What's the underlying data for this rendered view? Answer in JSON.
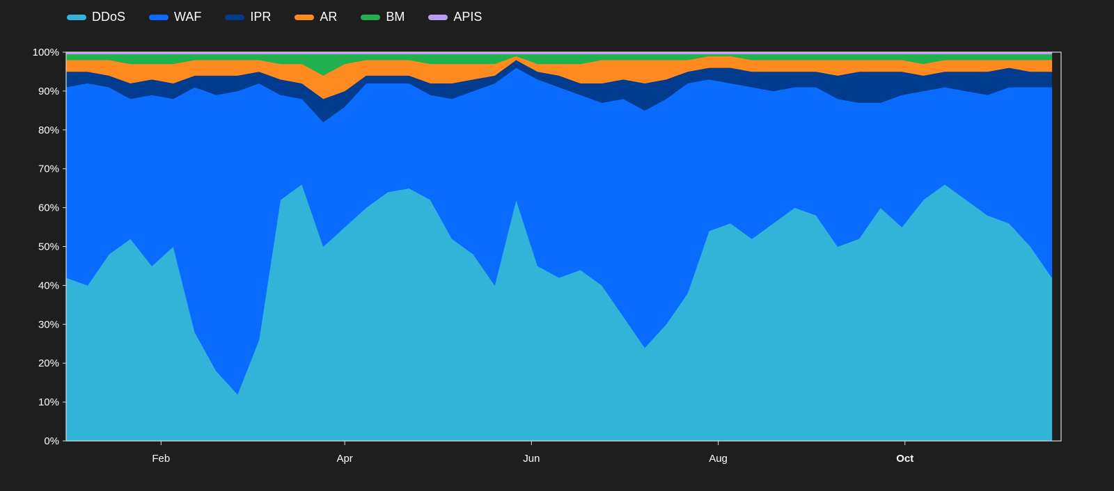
{
  "chart_data": {
    "type": "area",
    "stacked": true,
    "normalized": true,
    "y_axis": {
      "ticks": [
        "0%",
        "10%",
        "20%",
        "30%",
        "40%",
        "50%",
        "60%",
        "70%",
        "80%",
        "90%",
        "100%"
      ],
      "ylim": [
        0,
        100
      ]
    },
    "x_axis": {
      "ticks": [
        {
          "label": "Feb",
          "date": "2024-02-01",
          "bold": false
        },
        {
          "label": "Apr",
          "date": "2024-04-01",
          "bold": false
        },
        {
          "label": "Jun",
          "date": "2024-06-01",
          "bold": false
        },
        {
          "label": "Aug",
          "date": "2024-08-01",
          "bold": false
        },
        {
          "label": "Oct",
          "date": "2024-10-01",
          "bold": true
        }
      ],
      "xlim": [
        "2024-01-01",
        "2024-11-21"
      ]
    },
    "legend_placement": "top-left",
    "x": [
      "2024-01-01",
      "2024-01-08",
      "2024-01-15",
      "2024-01-22",
      "2024-01-29",
      "2024-02-05",
      "2024-02-12",
      "2024-02-19",
      "2024-02-26",
      "2024-03-04",
      "2024-03-11",
      "2024-03-18",
      "2024-03-25",
      "2024-04-01",
      "2024-04-08",
      "2024-04-15",
      "2024-04-22",
      "2024-04-29",
      "2024-05-06",
      "2024-05-13",
      "2024-05-20",
      "2024-05-27",
      "2024-06-03",
      "2024-06-10",
      "2024-06-17",
      "2024-06-24",
      "2024-07-01",
      "2024-07-08",
      "2024-07-15",
      "2024-07-22",
      "2024-07-29",
      "2024-08-05",
      "2024-08-12",
      "2024-08-19",
      "2024-08-26",
      "2024-09-02",
      "2024-09-09",
      "2024-09-16",
      "2024-09-23",
      "2024-09-30",
      "2024-10-07",
      "2024-10-14",
      "2024-10-21",
      "2024-10-28",
      "2024-11-04",
      "2024-11-11",
      "2024-11-18"
    ],
    "series": [
      {
        "name": "DDoS",
        "color": "#32b4d8",
        "values": [
          42,
          40,
          48,
          52,
          45,
          50,
          28,
          18,
          12,
          26,
          62,
          66,
          50,
          55,
          60,
          64,
          65,
          62,
          52,
          48,
          40,
          62,
          45,
          42,
          44,
          40,
          32,
          24,
          30,
          38,
          54,
          56,
          52,
          56,
          60,
          58,
          50,
          52,
          60,
          55,
          62,
          66,
          62,
          58,
          56,
          50,
          42
        ]
      },
      {
        "name": "WAF",
        "color": "#0a6cff",
        "values": [
          49,
          52,
          43,
          36,
          44,
          38,
          63,
          71,
          78,
          66,
          27,
          22,
          32,
          31,
          32,
          28,
          27,
          27,
          36,
          42,
          52,
          34,
          48,
          49,
          45,
          47,
          56,
          61,
          58,
          54,
          39,
          36,
          39,
          34,
          31,
          33,
          38,
          35,
          27,
          34,
          28,
          25,
          28,
          31,
          35,
          41,
          49
        ]
      },
      {
        "name": "IPR",
        "color": "#003b8e",
        "values": [
          4,
          3,
          3,
          4,
          4,
          4,
          3,
          5,
          4,
          3,
          4,
          4,
          6,
          4,
          2,
          2,
          2,
          3,
          4,
          3,
          2,
          2,
          2,
          3,
          3,
          5,
          5,
          7,
          5,
          3,
          3,
          4,
          4,
          5,
          4,
          4,
          6,
          8,
          8,
          6,
          4,
          4,
          5,
          6,
          5,
          4,
          4
        ]
      },
      {
        "name": "AR",
        "color": "#ff8a1f",
        "values": [
          3,
          3,
          4,
          5,
          4,
          5,
          4,
          4,
          4,
          3,
          4,
          5,
          6,
          7,
          4,
          4,
          4,
          5,
          5,
          4,
          3,
          1,
          2,
          3,
          5,
          6,
          5,
          6,
          5,
          3,
          3,
          3,
          3,
          3,
          3,
          3,
          4,
          3,
          3,
          3,
          3,
          3,
          3,
          3,
          2,
          3,
          3
        ]
      },
      {
        "name": "BM",
        "color": "#21b14f",
        "values": [
          1.5,
          1.5,
          1.5,
          2.5,
          2.5,
          2.5,
          1.5,
          1.5,
          1.5,
          1.5,
          2.5,
          2.5,
          5.5,
          2.5,
          1.5,
          1.5,
          1.5,
          2.5,
          2.5,
          2.5,
          2.5,
          0.5,
          2.5,
          2.5,
          2.5,
          1.5,
          1.5,
          1.5,
          1.5,
          1.5,
          0.5,
          0.5,
          1.5,
          1.5,
          1.5,
          1.5,
          1.5,
          1.5,
          1.5,
          1.5,
          2.5,
          1.5,
          1.5,
          1.5,
          1.5,
          1.5,
          1.5
        ]
      },
      {
        "name": "APIS",
        "color": "#b79cf0",
        "values": [
          0.5,
          0.5,
          0.5,
          0.5,
          0.5,
          0.5,
          0.5,
          0.5,
          0.5,
          0.5,
          0.5,
          0.5,
          0.5,
          0.5,
          0.5,
          0.5,
          0.5,
          0.5,
          0.5,
          0.5,
          0.5,
          0.5,
          0.5,
          0.5,
          0.5,
          0.5,
          0.5,
          0.5,
          0.5,
          0.5,
          0.5,
          0.5,
          0.5,
          0.5,
          0.5,
          0.5,
          0.5,
          0.5,
          0.5,
          0.5,
          0.5,
          0.5,
          0.5,
          0.5,
          0.5,
          0.5,
          0.5
        ]
      }
    ]
  }
}
